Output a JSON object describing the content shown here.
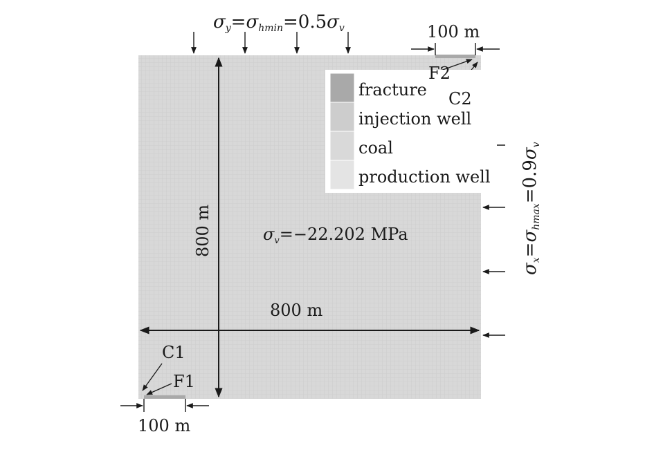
{
  "top_stress": {
    "sigma": "σ",
    "sub_y": "y",
    "eq": "=",
    "sub_hmin": "hmin",
    "value": "=0.5",
    "sub_v": "v"
  },
  "right_stress": {
    "sigma": "σ",
    "sub_x": "x",
    "eq": "=",
    "sub_hmax": "hmax",
    "value": "=0.9",
    "sub_v": "v"
  },
  "vertical_stress": {
    "sigma": "σ",
    "sub_v": "v",
    "value": "=−22.202 MPa"
  },
  "dimensions": {
    "height": "800 m",
    "width": "800 m",
    "fracture_top": "100 m",
    "fracture_bottom": "100 m"
  },
  "markers": {
    "f1": "F1",
    "c1": "C1",
    "f2": "F2",
    "c2": "C2"
  },
  "legend": {
    "items": [
      {
        "label": "fracture",
        "color": "#a9a9a9"
      },
      {
        "label": "injection well",
        "color": "#cdcdcd"
      },
      {
        "label": "coal",
        "color": "#d9d9d9"
      },
      {
        "label": "production well",
        "color": "#e4e4e4"
      }
    ]
  },
  "colors": {
    "domain_fill": "#d8d8d8",
    "mesh_line": "#cbcbcb",
    "fracture": "#a9a9a9",
    "ink": "#1a1a1a"
  }
}
